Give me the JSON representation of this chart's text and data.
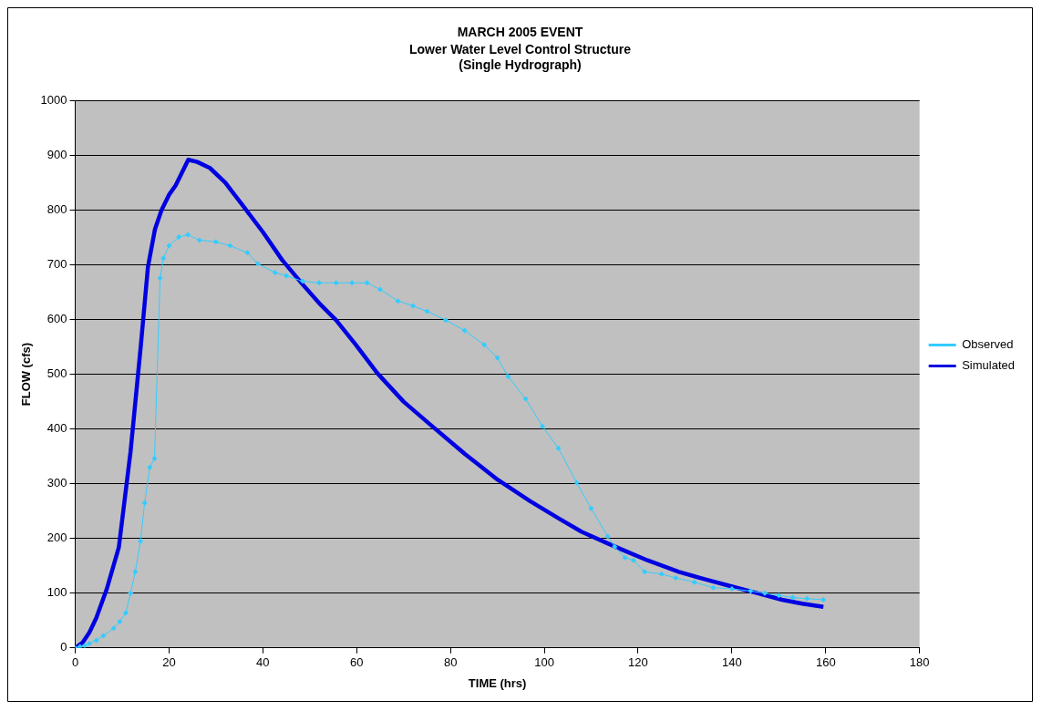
{
  "chart_data": {
    "type": "line",
    "title": "MARCH 2005 EVENT",
    "subtitle": "Lower Water Level Control Structure\n(Single Hydrograph)",
    "xlabel": "TIME (hrs)",
    "ylabel": "FLOW (cfs)",
    "xlim": [
      0,
      180
    ],
    "xticks": [
      0,
      20,
      40,
      60,
      80,
      100,
      120,
      140,
      160,
      180
    ],
    "ylim": [
      0,
      1000
    ],
    "yticks": [
      0,
      100,
      200,
      300,
      400,
      500,
      600,
      700,
      800,
      900,
      1000
    ],
    "grid": "y",
    "legend": "right",
    "series": [
      {
        "name": "Observed",
        "color": "#33ccff",
        "marker": "diamond",
        "x": [
          0,
          1,
          2,
          3,
          4.5,
          6,
          8.2,
          9.5,
          10.8,
          11.8,
          12.8,
          13.9,
          14.8,
          15.9,
          16.9,
          18.1,
          18.8,
          20,
          22.1,
          24,
          26.5,
          30,
          33,
          36.7,
          38.9,
          42.6,
          45,
          48.5,
          52,
          55.6,
          59,
          62.2,
          65,
          68.8,
          72,
          75,
          79,
          83,
          87.2,
          90,
          92.3,
          96,
          99.6,
          103,
          106.9,
          110,
          113.5,
          115,
          117.2,
          119,
          121.4,
          125,
          128,
          132,
          136,
          140,
          144,
          147,
          150,
          153,
          156,
          159.5
        ],
        "values": [
          0,
          2,
          4,
          8,
          14,
          22,
          36,
          48,
          64,
          100,
          139,
          195,
          265,
          330,
          346,
          676,
          712,
          735,
          751,
          755,
          745,
          742,
          735,
          722,
          702,
          686,
          680,
          670,
          667,
          667,
          667,
          667,
          655,
          634,
          625,
          615,
          599,
          580,
          554,
          530,
          496,
          455,
          405,
          365,
          302,
          255,
          204,
          185,
          165,
          160,
          139,
          135,
          128,
          120,
          110,
          108,
          104,
          100,
          96,
          92,
          90,
          88
        ]
      },
      {
        "name": "Simulated",
        "color": "#0000e0",
        "marker": "none",
        "x": [
          0,
          1.6,
          3,
          4.5,
          6.7,
          9.3,
          11.8,
          14,
          15.5,
          17,
          18.4,
          20,
          21.4,
          24.1,
          26,
          28.7,
          32,
          35.3,
          40,
          44.1,
          48.5,
          52,
          55.6,
          59.8,
          64.4,
          70,
          76.1,
          83,
          90.1,
          97,
          103.2,
          108,
          113.5,
          117,
          122,
          128.7,
          134,
          139.7,
          145,
          150.7,
          155,
          159.5
        ],
        "values": [
          0,
          10,
          28,
          55,
          107,
          184,
          359,
          554,
          696,
          765,
          800,
          828,
          845,
          892,
          888,
          877,
          850,
          813,
          760,
          709,
          664,
          630,
          599,
          554,
          502,
          450,
          405,
          355,
          307,
          268,
          236,
          212,
          191,
          178,
          160,
          139,
          126,
          113,
          101,
          88,
          81,
          75
        ]
      }
    ]
  }
}
